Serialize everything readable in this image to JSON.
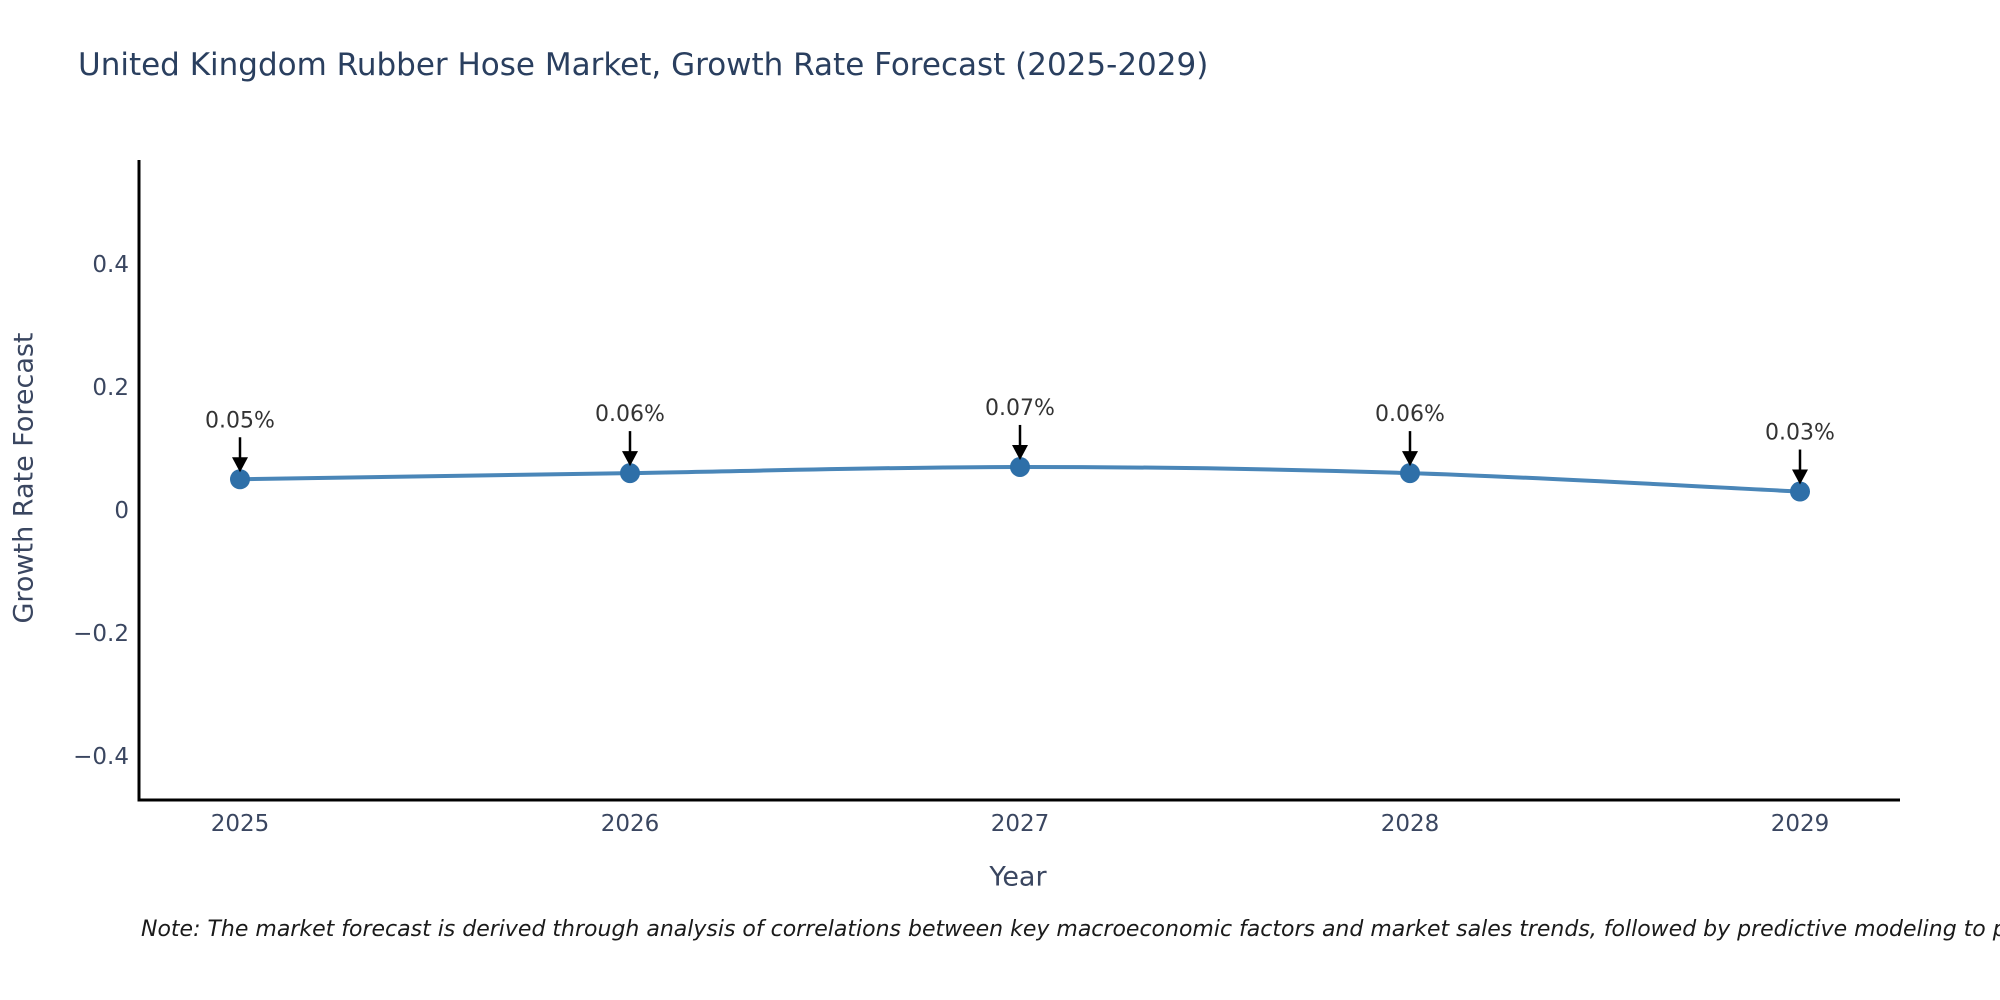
{
  "title": {
    "text": "United Kingdom Rubber Hose Market, Growth Rate Forecast (2025-2029)",
    "color": "#2a3f5f"
  },
  "chart_data": {
    "type": "line",
    "x": [
      2025,
      2026,
      2027,
      2028,
      2029
    ],
    "series": [
      {
        "name": "Growth Rate Forecast",
        "values": [
          0.05,
          0.06,
          0.07,
          0.06,
          0.03
        ]
      }
    ],
    "point_labels": [
      "0.05%",
      "0.06%",
      "0.07%",
      "0.06%",
      "0.03%"
    ],
    "title": "United Kingdom Rubber Hose Market, Growth Rate Forecast (2025-2029)",
    "xlabel": "Year",
    "ylabel": "Growth Rate Forecast",
    "xticks": [
      "2025",
      "2026",
      "2027",
      "2028",
      "2029"
    ],
    "yticks": {
      "values": [
        0.4,
        0.2,
        0,
        -0.2,
        -0.4
      ],
      "labels": [
        "0.4",
        "0.2",
        "0",
        "−0.2",
        "−0.4"
      ]
    },
    "ylim": [
      -0.47,
      0.57
    ],
    "grid": false,
    "legend": "none",
    "line_shape": "smooth",
    "annotation_style": "arrow-down-to-point",
    "colors": {
      "line": "#4a86b8",
      "marker": "#2e6fa8",
      "spine": "#000000",
      "tick_text": "#3a4660",
      "annotation_text": "#333333",
      "arrow": "#000000"
    }
  },
  "footnote": {
    "text": "Note: The market forecast is derived through analysis of correlations between key macroeconomic factors and market sales trends, followed by predictive modeling to project future sales."
  }
}
